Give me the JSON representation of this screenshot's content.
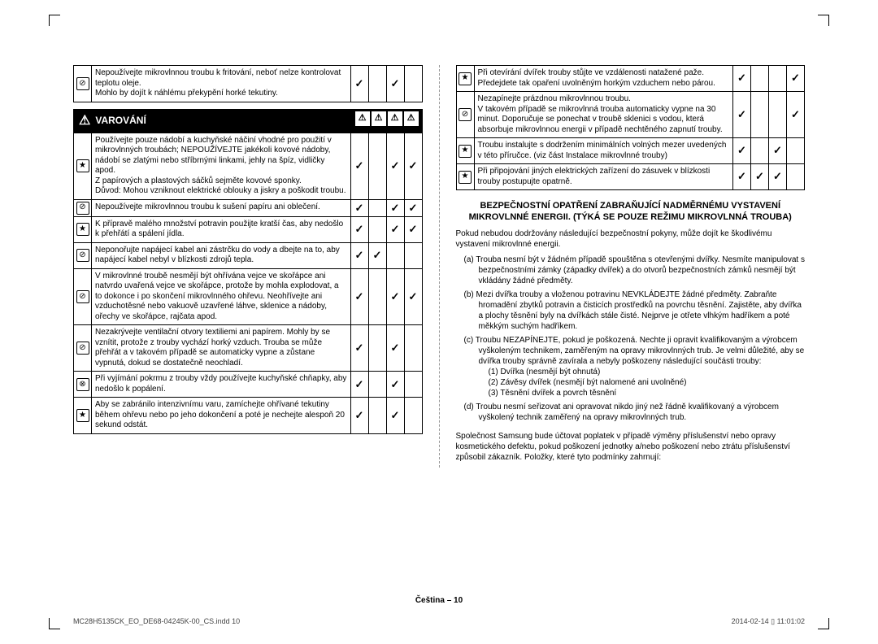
{
  "left": {
    "top_rows": [
      {
        "icon": "⊘",
        "text": "Nepoužívejte mikrovlnnou troubu k fritování, neboť nelze kontrolovat teplotu oleje.\nMohlo by dojít k náhlému překypění horké tekutiny.",
        "checks": [
          "✓",
          "",
          "✓",
          ""
        ]
      }
    ],
    "warning_title": "VAROVÁNÍ",
    "rows": [
      {
        "icon": "★",
        "text": "Používejte pouze nádobí a kuchyňské náčiní vhodné pro použití v mikrovlnných troubách; NEPOUŽÍVEJTE jakékoli kovové nádoby, nádobí se zlatými nebo stříbrnými linkami, jehly na špíz, vidličky apod.\nZ papírových a plastových sáčků sejměte kovové sponky.\nDůvod: Mohou vzniknout elektrické oblouky a jiskry a poškodit troubu.",
        "checks": [
          "✓",
          "",
          "✓",
          "✓"
        ]
      },
      {
        "icon": "⊘",
        "text": "Nepoužívejte mikrovlnnou troubu k sušení papíru ani oblečení.",
        "checks": [
          "✓",
          "",
          "✓",
          "✓"
        ]
      },
      {
        "icon": "★",
        "text": "K přípravě malého množství potravin použijte kratší čas, aby nedošlo k přehřátí a spálení jídla.",
        "checks": [
          "✓",
          "",
          "✓",
          "✓"
        ]
      },
      {
        "icon": "⊘",
        "text": "Neponořujte napájecí kabel ani zástrčku do vody a dbejte na to, aby napájecí kabel nebyl v blízkosti zdrojů tepla.",
        "checks": [
          "✓",
          "✓",
          "",
          ""
        ]
      },
      {
        "icon": "⊘",
        "text": "V mikrovlnné troubě nesmějí být ohřívána vejce ve skořápce ani natvrdo uvařená vejce ve skořápce, protože by mohla explodovat, a to dokonce i po skončení mikrovlnného ohřevu. Neohřívejte ani vzduchotěsné nebo vakuově uzavřené láhve, sklenice a nádoby, ořechy ve skořápce, rajčata apod.",
        "checks": [
          "✓",
          "",
          "✓",
          "✓"
        ]
      },
      {
        "icon": "⊘",
        "text": "Nezakrývejte ventilační otvory textiliemi ani papírem. Mohly by se vznítit, protože z trouby vychází horký vzduch. Trouba se může přehřát a v takovém případě se automaticky vypne a zůstane vypnutá, dokud se dostatečně neochladí.",
        "checks": [
          "✓",
          "",
          "✓",
          ""
        ]
      },
      {
        "icon": "⊗",
        "text": "Při vyjímání pokrmu z trouby vždy používejte kuchyňské chňapky, aby nedošlo k popálení.",
        "checks": [
          "✓",
          "",
          "✓",
          ""
        ]
      },
      {
        "icon": "★",
        "text": "Aby se zabránilo intenzivnímu varu, zamíchejte ohřívané tekutiny během ohřevu nebo po jeho dokončení a poté je nechejte alespoň 20 sekund odstát.",
        "checks": [
          "✓",
          "",
          "✓",
          ""
        ]
      }
    ]
  },
  "right": {
    "rows": [
      {
        "icon": "★",
        "text": "Při otevírání dvířek trouby stůjte ve vzdálenosti natažené paže. Předejdete tak opaření uvolněným horkým vzduchem nebo párou.",
        "checks": [
          "✓",
          "",
          "",
          "✓"
        ]
      },
      {
        "icon": "⊘",
        "text": "Nezapínejte prázdnou mikrovlnnou troubu.\nV takovém případě se mikrovlnná trouba automaticky vypne na 30 minut. Doporučuje se ponechat v troubě sklenici s vodou, která absorbuje mikrovlnnou energii v případě nechtěného zapnutí trouby.",
        "checks": [
          "✓",
          "",
          "",
          "✓"
        ]
      },
      {
        "icon": "★",
        "text": "Troubu instalujte s dodržením minimálních volných mezer uvedených v této příručce. (viz část Instalace mikrovlnné trouby)",
        "checks": [
          "✓",
          "",
          "✓",
          ""
        ]
      },
      {
        "icon": "★",
        "text": "Při připojování jiných elektrických zařízení do zásuvek v blízkosti trouby postupujte opatrně.",
        "checks": [
          "✓",
          "✓",
          "✓",
          ""
        ]
      }
    ],
    "heading": "BEZPEČNOSTNÍ OPATŘENÍ ZABRAŇUJÍCÍ NADMĚRNÉMU VYSTAVENÍ MIKROVLNNÉ ENERGII. (TÝKÁ SE POUZE REŽIMU MIKROVLNNÁ TROUBA)",
    "intro": "Pokud nebudou dodržovány následující bezpečnostní pokyny, může dojít ke škodlivému vystavení mikrovlnné energii.",
    "lettered": [
      {
        "l": "(a)",
        "t": "Trouba nesmí být v žádném případě spouštěna s otevřenými dvířky. Nesmíte manipulovat s bezpečnostními zámky (západky dvířek) a do otvorů bezpečnostních zámků nesmějí být vkládány žádné předměty."
      },
      {
        "l": "(b)",
        "t": "Mezi dvířka trouby a vloženou potravinu NEVKLÁDEJTE žádné předměty. Zabraňte hromadění zbytků potravin a čisticích prostředků na povrchu těsnění. Zajistěte, aby dvířka a plochy těsnění byly na dvířkách stále čisté. Nejprve je otřete vlhkým hadříkem a poté měkkým suchým hadříkem."
      },
      {
        "l": "(c)",
        "t": "Troubu NEZAPÍNEJTE, pokud je poškozená. Nechte ji opravit kvalifikovaným a výrobcem vyškoleným technikem, zaměřeným na opravy mikrovlnných trub. Je velmi důležité, aby se dvířka trouby správně zavírala a nebyly poškozeny následující součásti trouby:",
        "sub": [
          "(1) Dvířka (nesmějí být ohnutá)",
          "(2) Závěsy dvířek (nesmějí být nalomené ani uvolněné)",
          "(3) Těsnění dvířek a povrch těsnění"
        ]
      },
      {
        "l": "(d)",
        "t": "Troubu nesmí seřizovat ani opravovat nikdo jiný než řádně kvalifikovaný a výrobcem vyškolený technik zaměřený na opravy mikrovlnných trub."
      }
    ],
    "closing": "Společnost Samsung bude účtovat poplatek v případě výměny příslušenství nebo opravy kosmetického defektu, pokud poškození jednotky a/nebo poškození nebo ztrátu příslušenství způsobil zákazník. Položky, které tyto podmínky zahrnují:",
    "footer_center": "Čeština – 10",
    "footer_left": "MC28H5135CK_EO_DE68-04245K-00_CS.indd   10",
    "footer_right": "2014-02-14   ▯ 11:01:02"
  },
  "icons": {
    "prohibit": "⊘",
    "star": "★",
    "nohand": "⊗",
    "check": "✓",
    "warn": "⚠"
  }
}
